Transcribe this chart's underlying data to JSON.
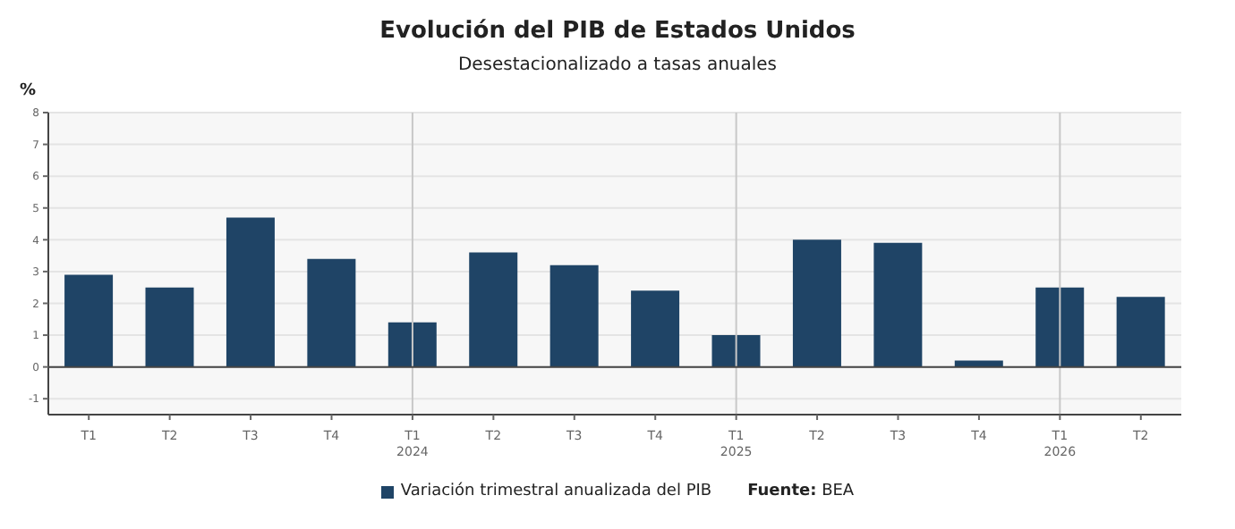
{
  "chart_data": {
    "type": "bar",
    "title": "Evolución del PIB de Estados Unidos",
    "subtitle": "Desestacionalizado a tasas anuales",
    "ylabel": "%",
    "categories": [
      "T1",
      "T2",
      "T3",
      "T4",
      "T1\n2024",
      "T2",
      "T3",
      "T4",
      "T1\n2025",
      "T2",
      "T3",
      "T4",
      "T1\n2026",
      "T2"
    ],
    "series": [
      {
        "name": "Variación trimestral anualizada del PIB",
        "color": "#1f4466",
        "values": [
          2.9,
          2.5,
          4.7,
          3.4,
          1.4,
          3.6,
          3.2,
          2.4,
          1.0,
          4.0,
          3.9,
          0.2,
          2.5,
          2.2
        ]
      }
    ],
    "ylim": [
      -1.5,
      8
    ],
    "yticks": [
      -1,
      0,
      1,
      2,
      3,
      4,
      5,
      6,
      7,
      8
    ],
    "grid": "y",
    "legend": "bottom",
    "ref_lines": [
      {
        "axis": "x",
        "value": "T1\n2024",
        "color": "#c8c8c8"
      },
      {
        "axis": "x",
        "value": "T1\n2025",
        "color": "#c8c8c8"
      },
      {
        "axis": "x",
        "value": "T1\n2026",
        "color": "#c8c8c8"
      }
    ],
    "annotations": [
      "Fuente: BEA"
    ]
  }
}
